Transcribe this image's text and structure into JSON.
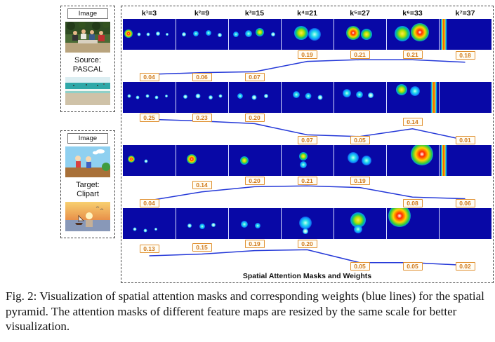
{
  "figure": {
    "left": {
      "source": {
        "image_label": "Image",
        "line1": "Source:",
        "line2": "PASCAL"
      },
      "target": {
        "image_label": "Image",
        "line1": "Target:",
        "line2": "Clipart"
      }
    },
    "grid": {
      "footer": "Spatial Attention Masks and Weights"
    }
  },
  "chart_data": {
    "type": "line",
    "title": "Spatial Attention Masks and Weights",
    "categories": [
      "k¹=3",
      "k²=9",
      "k³=15",
      "k⁴=21",
      "k⁵=27",
      "k⁶=33",
      "k⁷=37"
    ],
    "series": [
      {
        "name": "source-pascal-image-1",
        "values": [
          0.04,
          0.06,
          0.07,
          0.19,
          0.21,
          0.21,
          0.18
        ]
      },
      {
        "name": "source-pascal-image-2",
        "values": [
          0.25,
          0.23,
          0.2,
          0.07,
          0.05,
          0.14,
          0.01
        ]
      },
      {
        "name": "target-clipart-image-1",
        "values": [
          0.04,
          0.14,
          0.2,
          0.21,
          0.19,
          0.08,
          0.06
        ]
      },
      {
        "name": "target-clipart-image-2",
        "values": [
          0.13,
          0.15,
          0.19,
          0.2,
          0.05,
          0.05,
          0.02
        ]
      }
    ],
    "ylim": [
      0,
      0.26
    ],
    "grid": false,
    "legend": "none",
    "line_color": "#2438d8",
    "label_color": "#d07818"
  },
  "masks": {
    "background": "#0808a6",
    "rows": [
      [
        [
          [
            10,
            48,
            6,
            "hot"
          ],
          [
            30,
            50,
            2.5,
            "dot"
          ],
          [
            48,
            50,
            2.5,
            "dot"
          ],
          [
            66,
            48,
            3,
            "dot"
          ],
          [
            84,
            50,
            2,
            "dot"
          ]
        ],
        [
          [
            15,
            50,
            3,
            "dot"
          ],
          [
            38,
            48,
            4,
            "cool"
          ],
          [
            62,
            46,
            4,
            "cool"
          ],
          [
            84,
            52,
            3,
            "dot"
          ]
        ],
        [
          [
            14,
            50,
            4,
            "cool"
          ],
          [
            38,
            48,
            5,
            "cool"
          ],
          [
            60,
            44,
            6,
            "warm"
          ],
          [
            85,
            50,
            3,
            "dot"
          ]
        ],
        [
          [
            38,
            45,
            10,
            "warm"
          ],
          [
            63,
            50,
            9,
            "cool"
          ]
        ],
        [
          [
            36,
            45,
            10,
            "hot"
          ],
          [
            62,
            50,
            8,
            "warm"
          ]
        ],
        [
          [
            30,
            48,
            11,
            "warm"
          ],
          [
            64,
            44,
            13,
            "hot"
          ]
        ],
        [
          [
            8,
            0,
            0,
            "stripe"
          ]
        ]
      ],
      [
        [
          [
            12,
            46,
            2.5,
            "dot"
          ],
          [
            28,
            50,
            2.5,
            "dot"
          ],
          [
            46,
            46,
            2.5,
            "dot"
          ],
          [
            64,
            50,
            2.5,
            "dot"
          ],
          [
            82,
            46,
            2,
            "dot"
          ]
        ],
        [
          [
            18,
            48,
            3,
            "dot"
          ],
          [
            42,
            46,
            3.5,
            "dot"
          ],
          [
            66,
            50,
            3,
            "dot"
          ],
          [
            85,
            46,
            2.5,
            "dot"
          ]
        ],
        [
          [
            22,
            46,
            4,
            "cool"
          ],
          [
            48,
            50,
            3.5,
            "dot"
          ],
          [
            72,
            46,
            3,
            "dot"
          ]
        ],
        [
          [
            28,
            42,
            5,
            "cool"
          ],
          [
            52,
            46,
            4.5,
            "cool"
          ],
          [
            74,
            50,
            3.5,
            "dot"
          ]
        ],
        [
          [
            24,
            36,
            6,
            "cool"
          ],
          [
            48,
            40,
            5,
            "cool"
          ],
          [
            70,
            44,
            4,
            "dot"
          ]
        ],
        [
          [
            28,
            26,
            8,
            "warm"
          ],
          [
            54,
            30,
            7,
            "cool"
          ],
          [
            90,
            0,
            0,
            "stripe"
          ]
        ],
        []
      ],
      [
        [
          [
            16,
            46,
            5,
            "hot"
          ],
          [
            44,
            52,
            2.5,
            "dot"
          ]
        ],
        [
          [
            30,
            46,
            7,
            "hot"
          ]
        ],
        [
          [
            30,
            50,
            6,
            "warm"
          ]
        ],
        [
          [
            42,
            36,
            6,
            "warm"
          ],
          [
            42,
            64,
            5,
            "cool"
          ]
        ],
        [
          [
            36,
            42,
            8,
            "cool"
          ],
          [
            62,
            50,
            7,
            "cool"
          ]
        ],
        [
          [
            68,
            30,
            16,
            "hot"
          ]
        ],
        [
          [
            8,
            0,
            0,
            "stripe"
          ]
        ]
      ],
      [
        [
          [
            22,
            68,
            2.5,
            "dot"
          ],
          [
            42,
            72,
            2.5,
            "dot"
          ],
          [
            62,
            68,
            2,
            "dot"
          ]
        ],
        [
          [
            26,
            56,
            3,
            "dot"
          ],
          [
            50,
            60,
            4,
            "cool"
          ],
          [
            72,
            55,
            3,
            "dot"
          ]
        ],
        [
          [
            30,
            52,
            5,
            "cool"
          ],
          [
            56,
            56,
            4,
            "cool"
          ]
        ],
        [
          [
            46,
            48,
            9,
            "cool"
          ],
          [
            46,
            74,
            4,
            "dot"
          ]
        ],
        [
          [
            46,
            38,
            11,
            "warm"
          ],
          [
            46,
            68,
            6,
            "cool"
          ]
        ],
        [
          [
            24,
            26,
            16,
            "hot"
          ]
        ],
        []
      ]
    ]
  },
  "caption": {
    "text": "Fig. 2: Visualization of spatial attention masks and corresponding weights (blue lines) for the spatial pyramid. The attention masks of different feature maps are resized by the same scale for better visualization."
  }
}
